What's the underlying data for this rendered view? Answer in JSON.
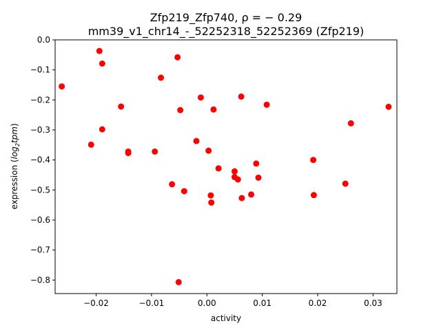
{
  "chart_data": {
    "type": "scatter",
    "title_line1": "Zfp219_Zfp740, ρ = − 0.29",
    "title_line2": "mm39_v1_chr14_-_52252318_52252369 (Zfp219)",
    "xlabel": "activity",
    "ylabel_prefix": "expression (",
    "ylabel_math": "log",
    "ylabel_sub": "2",
    "ylabel_math2": "tpm",
    "ylabel_suffix": ")",
    "xlim": [
      -0.0274,
      0.0343
    ],
    "ylim": [
      -0.845,
      0.0
    ],
    "x_ticks": [
      -0.02,
      -0.01,
      0.0,
      0.01,
      0.02,
      0.03
    ],
    "x_tick_labels": [
      "−0.02",
      "−0.01",
      "0.00",
      "0.01",
      "0.02",
      "0.03"
    ],
    "y_ticks": [
      0.0,
      -0.1,
      -0.2,
      -0.3,
      -0.4,
      -0.5,
      -0.6,
      -0.7,
      -0.8
    ],
    "y_tick_labels": [
      "0.0",
      "−0.1",
      "−0.2",
      "−0.3",
      "−0.4",
      "−0.5",
      "−0.6",
      "−0.7",
      "−0.8"
    ],
    "marker_color": "#ff0000",
    "grid": false,
    "points": [
      {
        "x": -0.0262,
        "y": -0.155
      },
      {
        "x": -0.0194,
        "y": -0.037
      },
      {
        "x": -0.0189,
        "y": -0.079
      },
      {
        "x": -0.0189,
        "y": -0.298
      },
      {
        "x": -0.0209,
        "y": -0.349
      },
      {
        "x": -0.0155,
        "y": -0.222
      },
      {
        "x": -0.0142,
        "y": -0.372
      },
      {
        "x": -0.0142,
        "y": -0.377
      },
      {
        "x": -0.0094,
        "y": -0.372
      },
      {
        "x": -0.0083,
        "y": -0.126
      },
      {
        "x": -0.0053,
        "y": -0.058
      },
      {
        "x": -0.0048,
        "y": -0.234
      },
      {
        "x": -0.0063,
        "y": -0.481
      },
      {
        "x": -0.0041,
        "y": -0.504
      },
      {
        "x": -0.0051,
        "y": -0.807
      },
      {
        "x": -0.0019,
        "y": -0.337
      },
      {
        "x": -0.0011,
        "y": -0.192
      },
      {
        "x": 0.0003,
        "y": -0.369
      },
      {
        "x": 0.0012,
        "y": -0.232
      },
      {
        "x": 0.0007,
        "y": -0.518
      },
      {
        "x": 0.0008,
        "y": -0.542
      },
      {
        "x": 0.0021,
        "y": -0.428
      },
      {
        "x": 0.005,
        "y": -0.438
      },
      {
        "x": 0.005,
        "y": -0.457
      },
      {
        "x": 0.0056,
        "y": -0.465
      },
      {
        "x": 0.0062,
        "y": -0.189
      },
      {
        "x": 0.0063,
        "y": -0.527
      },
      {
        "x": 0.008,
        "y": -0.515
      },
      {
        "x": 0.0089,
        "y": -0.412
      },
      {
        "x": 0.0093,
        "y": -0.459
      },
      {
        "x": 0.0108,
        "y": -0.216
      },
      {
        "x": 0.0192,
        "y": -0.4
      },
      {
        "x": 0.0193,
        "y": -0.517
      },
      {
        "x": 0.025,
        "y": -0.479
      },
      {
        "x": 0.026,
        "y": -0.278
      },
      {
        "x": 0.0328,
        "y": -0.223
      }
    ]
  }
}
